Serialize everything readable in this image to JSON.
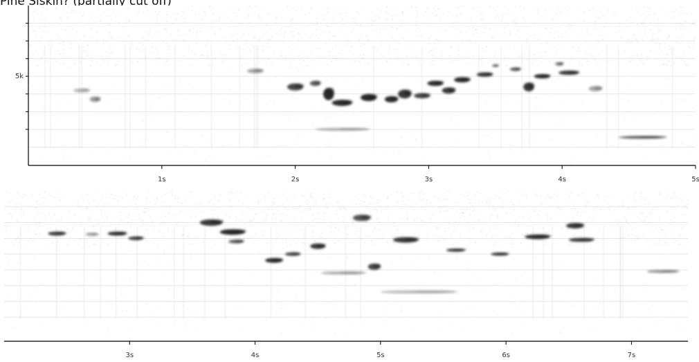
{
  "header": {
    "text": "Pine Siskin? (partially cut off)"
  },
  "chart_data": [
    {
      "type": "heatmap",
      "title": "",
      "xlabel": "",
      "ylabel": "",
      "x_unit": "s",
      "xlim": [
        0,
        5
      ],
      "x_ticks": [
        1,
        2,
        3,
        4,
        5
      ],
      "x_tick_labels": [
        "1s",
        "2s",
        "3s",
        "4s",
        "5s"
      ],
      "y_ticks": [
        5000
      ],
      "y_tick_labels": [
        "5k"
      ],
      "grid": true,
      "colors": {
        "ink": "#1a1a1a",
        "noise": "#8a8a8a",
        "grid": "#d8d8d8"
      },
      "calls": [
        {
          "x": 0.4,
          "y": 4.2,
          "dx": 0.12,
          "dy": 0.2,
          "v": 0.35
        },
        {
          "x": 0.5,
          "y": 3.7,
          "dx": 0.08,
          "dy": 0.3,
          "v": 0.45
        },
        {
          "x": 1.7,
          "y": 5.3,
          "dx": 0.12,
          "dy": 0.25,
          "v": 0.4
        },
        {
          "x": 2.0,
          "y": 4.4,
          "dx": 0.12,
          "dy": 0.4,
          "v": 0.8
        },
        {
          "x": 2.15,
          "y": 4.6,
          "dx": 0.08,
          "dy": 0.3,
          "v": 0.7
        },
        {
          "x": 2.25,
          "y": 4.0,
          "dx": 0.08,
          "dy": 0.7,
          "v": 0.95
        },
        {
          "x": 2.35,
          "y": 3.5,
          "dx": 0.15,
          "dy": 0.35,
          "v": 0.9
        },
        {
          "x": 2.55,
          "y": 3.8,
          "dx": 0.12,
          "dy": 0.4,
          "v": 0.95
        },
        {
          "x": 2.72,
          "y": 3.7,
          "dx": 0.1,
          "dy": 0.35,
          "v": 0.9
        },
        {
          "x": 2.82,
          "y": 4.0,
          "dx": 0.1,
          "dy": 0.5,
          "v": 0.85
        },
        {
          "x": 2.95,
          "y": 3.9,
          "dx": 0.12,
          "dy": 0.3,
          "v": 0.8
        },
        {
          "x": 3.05,
          "y": 4.6,
          "dx": 0.12,
          "dy": 0.3,
          "v": 0.9
        },
        {
          "x": 3.15,
          "y": 4.2,
          "dx": 0.1,
          "dy": 0.35,
          "v": 0.85
        },
        {
          "x": 3.25,
          "y": 4.8,
          "dx": 0.12,
          "dy": 0.3,
          "v": 0.9
        },
        {
          "x": 3.42,
          "y": 5.1,
          "dx": 0.12,
          "dy": 0.25,
          "v": 0.85
        },
        {
          "x": 3.5,
          "y": 5.6,
          "dx": 0.05,
          "dy": 0.15,
          "v": 0.6
        },
        {
          "x": 3.65,
          "y": 5.4,
          "dx": 0.08,
          "dy": 0.2,
          "v": 0.7
        },
        {
          "x": 3.75,
          "y": 4.4,
          "dx": 0.08,
          "dy": 0.5,
          "v": 0.85
        },
        {
          "x": 3.85,
          "y": 5.0,
          "dx": 0.12,
          "dy": 0.25,
          "v": 0.9
        },
        {
          "x": 3.98,
          "y": 5.7,
          "dx": 0.06,
          "dy": 0.2,
          "v": 0.6
        },
        {
          "x": 4.05,
          "y": 5.2,
          "dx": 0.15,
          "dy": 0.25,
          "v": 0.85
        },
        {
          "x": 4.25,
          "y": 4.3,
          "dx": 0.1,
          "dy": 0.3,
          "v": 0.4
        },
        {
          "x": 4.6,
          "y": 1.55,
          "dx": 0.35,
          "dy": 0.12,
          "v": 0.7
        },
        {
          "x": 2.35,
          "y": 2.0,
          "dx": 0.4,
          "dy": 0.15,
          "v": 0.35
        }
      ]
    },
    {
      "type": "heatmap",
      "title": "",
      "xlabel": "",
      "ylabel": "",
      "x_unit": "s",
      "xlim": [
        2.0,
        7.45
      ],
      "x_ticks": [
        3,
        4,
        5,
        6,
        7
      ],
      "x_tick_labels": [
        "3s",
        "4s",
        "5s",
        "6s",
        "7s"
      ],
      "grid": true,
      "colors": {
        "ink": "#1a1a1a",
        "noise": "#8a8a8a",
        "grid": "#d8d8d8"
      },
      "calls": [
        {
          "x": 2.42,
          "y": 6.3,
          "dx": 0.14,
          "dy": 0.25,
          "v": 0.85
        },
        {
          "x": 2.7,
          "y": 6.25,
          "dx": 0.1,
          "dy": 0.2,
          "v": 0.4
        },
        {
          "x": 2.9,
          "y": 6.3,
          "dx": 0.15,
          "dy": 0.25,
          "v": 0.9
        },
        {
          "x": 3.05,
          "y": 6.0,
          "dx": 0.12,
          "dy": 0.25,
          "v": 0.8
        },
        {
          "x": 3.65,
          "y": 7.0,
          "dx": 0.18,
          "dy": 0.4,
          "v": 0.85
        },
        {
          "x": 3.82,
          "y": 6.4,
          "dx": 0.2,
          "dy": 0.35,
          "v": 0.95
        },
        {
          "x": 3.85,
          "y": 5.8,
          "dx": 0.12,
          "dy": 0.25,
          "v": 0.7
        },
        {
          "x": 4.15,
          "y": 4.6,
          "dx": 0.14,
          "dy": 0.3,
          "v": 0.9
        },
        {
          "x": 4.3,
          "y": 5.0,
          "dx": 0.12,
          "dy": 0.25,
          "v": 0.75
        },
        {
          "x": 4.5,
          "y": 5.5,
          "dx": 0.12,
          "dy": 0.35,
          "v": 0.85
        },
        {
          "x": 4.85,
          "y": 7.3,
          "dx": 0.14,
          "dy": 0.4,
          "v": 0.75
        },
        {
          "x": 4.95,
          "y": 4.2,
          "dx": 0.1,
          "dy": 0.4,
          "v": 0.8
        },
        {
          "x": 5.2,
          "y": 5.9,
          "dx": 0.2,
          "dy": 0.35,
          "v": 0.85
        },
        {
          "x": 5.6,
          "y": 5.25,
          "dx": 0.15,
          "dy": 0.2,
          "v": 0.85
        },
        {
          "x": 5.95,
          "y": 5.0,
          "dx": 0.14,
          "dy": 0.2,
          "v": 0.85
        },
        {
          "x": 6.25,
          "y": 6.1,
          "dx": 0.2,
          "dy": 0.3,
          "v": 0.9
        },
        {
          "x": 6.55,
          "y": 6.8,
          "dx": 0.14,
          "dy": 0.35,
          "v": 0.85
        },
        {
          "x": 6.6,
          "y": 5.9,
          "dx": 0.2,
          "dy": 0.25,
          "v": 0.85
        },
        {
          "x": 7.25,
          "y": 3.9,
          "dx": 0.25,
          "dy": 0.1,
          "v": 0.5
        },
        {
          "x": 4.7,
          "y": 3.8,
          "dx": 0.35,
          "dy": 0.1,
          "v": 0.4
        },
        {
          "x": 5.3,
          "y": 2.6,
          "dx": 0.6,
          "dy": 0.1,
          "v": 0.35
        }
      ]
    }
  ]
}
